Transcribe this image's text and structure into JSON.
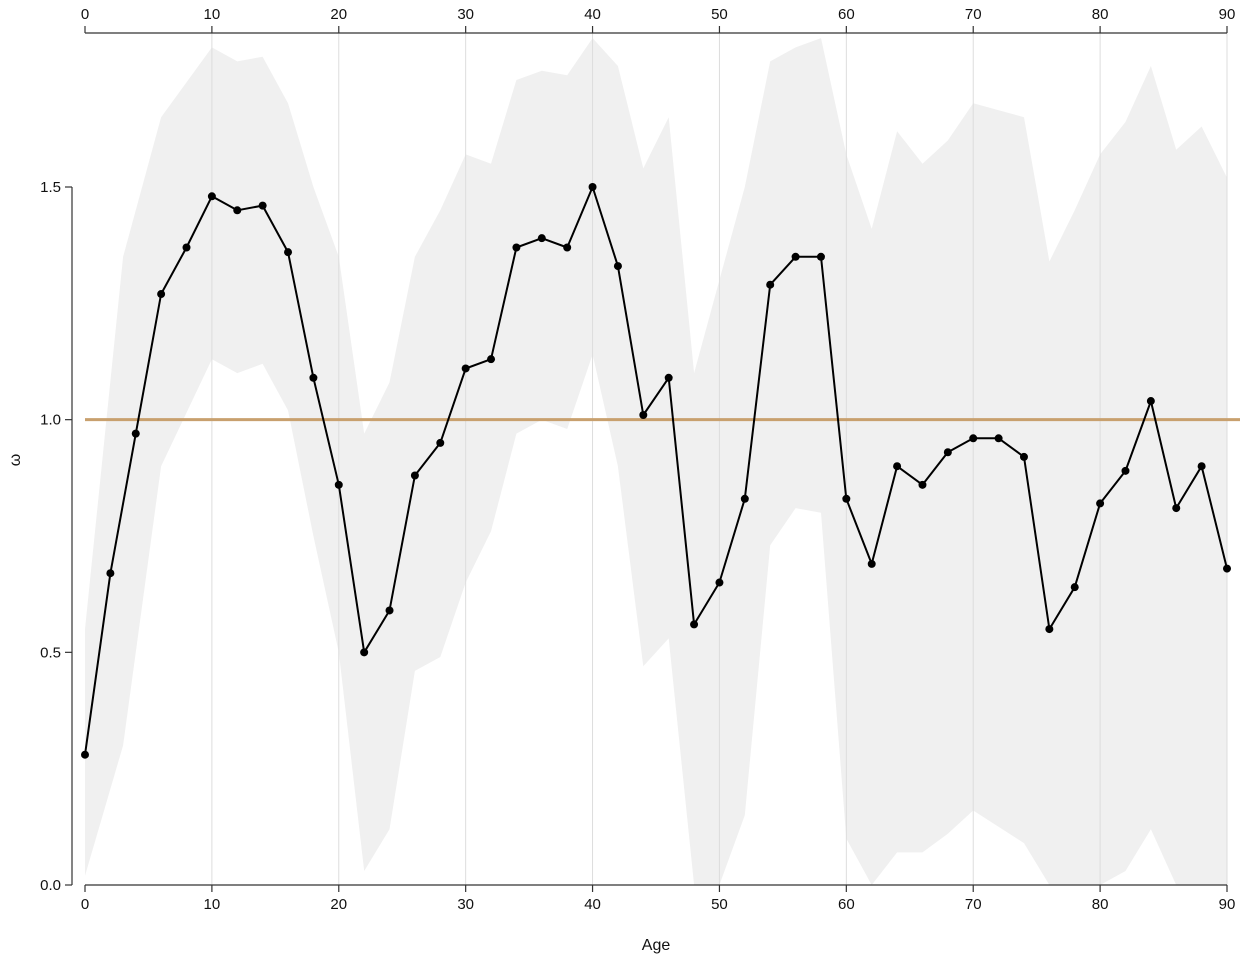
{
  "chart_data": {
    "type": "line",
    "title": "",
    "xlabel": "Age",
    "ylabel": "ω",
    "xlim": [
      0,
      90
    ],
    "ylim": [
      0,
      1.8
    ],
    "x_ticks": [
      0,
      10,
      20,
      30,
      40,
      50,
      60,
      70,
      80,
      90
    ],
    "y_ticks": [
      0.0,
      0.5,
      1.0,
      1.5
    ],
    "x_tick_labels": [
      "0",
      "10",
      "20",
      "30",
      "40",
      "50",
      "60",
      "70",
      "80",
      "90"
    ],
    "y_tick_labels": [
      "0.0",
      "0.5",
      "1.0",
      "1.5"
    ],
    "top_axis_tick_labels": [
      "0",
      "10",
      "20",
      "30",
      "40",
      "50",
      "60",
      "70",
      "80",
      "90"
    ],
    "grid": "vertical",
    "reference_line": {
      "y": 1.0,
      "color": "#C8A06E"
    },
    "colors": {
      "line": "#000000",
      "band": "#F0F0F0",
      "grid": "#DDDDDD",
      "axis": "#333333"
    },
    "x": [
      0,
      2,
      4,
      6,
      8,
      10,
      12,
      14,
      16,
      18,
      20,
      22,
      24,
      26,
      28,
      30,
      32,
      34,
      36,
      38,
      40,
      42,
      44,
      46,
      48,
      50,
      52,
      54,
      56,
      58,
      60,
      62,
      64,
      66,
      68,
      70,
      72,
      74,
      76,
      78,
      80,
      82,
      84,
      86,
      88,
      90
    ],
    "series": [
      {
        "values": [
          0.28,
          0.67,
          0.97,
          1.27,
          1.37,
          1.48,
          1.45,
          1.46,
          1.36,
          1.09,
          0.86,
          0.5,
          0.59,
          0.88,
          0.95,
          1.11,
          1.13,
          1.37,
          1.39,
          1.37,
          1.5,
          1.33,
          1.01,
          1.09,
          0.56,
          0.65,
          0.83,
          1.29,
          1.35,
          1.35,
          0.83,
          0.69,
          0.9,
          0.86,
          0.93,
          0.96,
          0.96,
          0.92,
          0.55,
          0.64,
          0.82,
          0.89,
          1.04,
          0.81,
          0.9,
          0.68
        ]
      }
    ],
    "band": {
      "x": [
        0,
        3,
        6,
        10,
        12,
        14,
        16,
        18,
        20,
        22,
        24,
        26,
        28,
        30,
        32,
        34,
        36,
        38,
        40,
        42,
        44,
        46,
        48,
        50,
        52,
        54,
        56,
        58,
        60,
        62,
        64,
        66,
        68,
        70,
        74,
        76,
        78,
        80,
        82,
        84,
        86,
        88,
        90
      ],
      "upper": [
        0.55,
        1.35,
        1.65,
        1.8,
        1.77,
        1.78,
        1.68,
        1.5,
        1.35,
        0.97,
        1.08,
        1.35,
        1.45,
        1.57,
        1.55,
        1.73,
        1.75,
        1.74,
        1.82,
        1.76,
        1.54,
        1.65,
        1.1,
        1.3,
        1.5,
        1.77,
        1.8,
        1.82,
        1.57,
        1.41,
        1.62,
        1.55,
        1.6,
        1.68,
        1.65,
        1.34,
        1.45,
        1.57,
        1.64,
        1.76,
        1.58,
        1.63,
        1.52
      ],
      "lower": [
        0.02,
        0.3,
        0.9,
        1.13,
        1.1,
        1.12,
        1.02,
        0.75,
        0.5,
        0.03,
        0.12,
        0.46,
        0.49,
        0.65,
        0.76,
        0.97,
        1.0,
        0.98,
        1.14,
        0.9,
        0.47,
        0.53,
        0.0,
        0.0,
        0.15,
        0.73,
        0.81,
        0.8,
        0.1,
        0.0,
        0.07,
        0.07,
        0.11,
        0.16,
        0.09,
        0.0,
        0.0,
        0.0,
        0.03,
        0.12,
        0.0,
        0.0,
        0.0
      ]
    }
  }
}
